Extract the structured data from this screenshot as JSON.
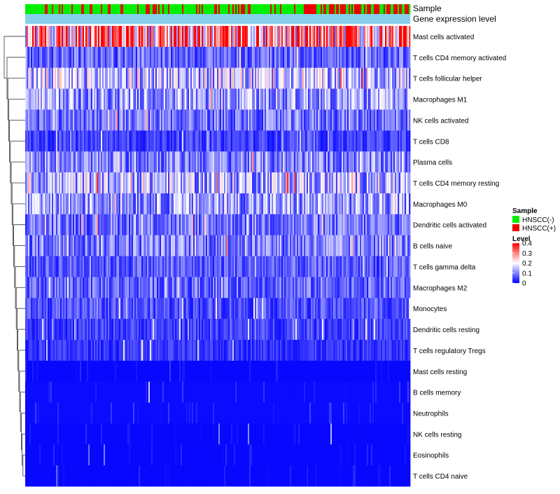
{
  "chart_data": {
    "type": "heatmap",
    "annotation_tracks": [
      "Sample",
      "Gene expression level"
    ],
    "rows": [
      "Mast cells activated",
      "T cells CD4 memory activated",
      "T cells follicular helper",
      "Macrophages M1",
      "NK cells activated",
      "T cells CD8",
      "Plasma cells",
      "T cells CD4 memory resting",
      "Macrophages M0",
      "Dendritic cells activated",
      "B cells naive",
      "T cells gamma delta",
      "Macrophages M2",
      "Monocytes",
      "Dendritic cells resting",
      "T cells regulatory  Tregs",
      "Mast cells resting",
      "B cells memory",
      "Neutrophils",
      "NK cells resting",
      "Eosinophils",
      "T cells CD4 naive"
    ],
    "row_mean_levels": [
      0.3,
      0.08,
      0.15,
      0.12,
      0.09,
      0.05,
      0.1,
      0.14,
      0.12,
      0.09,
      0.1,
      0.07,
      0.08,
      0.06,
      0.05,
      0.04,
      0.02,
      0.03,
      0.03,
      0.02,
      0.02,
      0.02
    ],
    "n_samples": 275,
    "sample_legend": {
      "title": "Sample",
      "items": [
        {
          "label": "HNSCC(-)",
          "color": "#00ee00"
        },
        {
          "label": "HNSCC(+)",
          "color": "#ee0000"
        }
      ]
    },
    "level_legend": {
      "title": "Level",
      "ticks": [
        "0.4",
        "0.3",
        "0.2",
        "0.1",
        "0"
      ],
      "tick_values": [
        0.4,
        0.3,
        0.2,
        0.1,
        0
      ],
      "range": [
        0,
        0.4
      ],
      "colors": {
        "low": "#0000ff",
        "mid": "#ffffff",
        "high": "#ff0000"
      }
    },
    "expression_track_color": "#87ceeb"
  }
}
